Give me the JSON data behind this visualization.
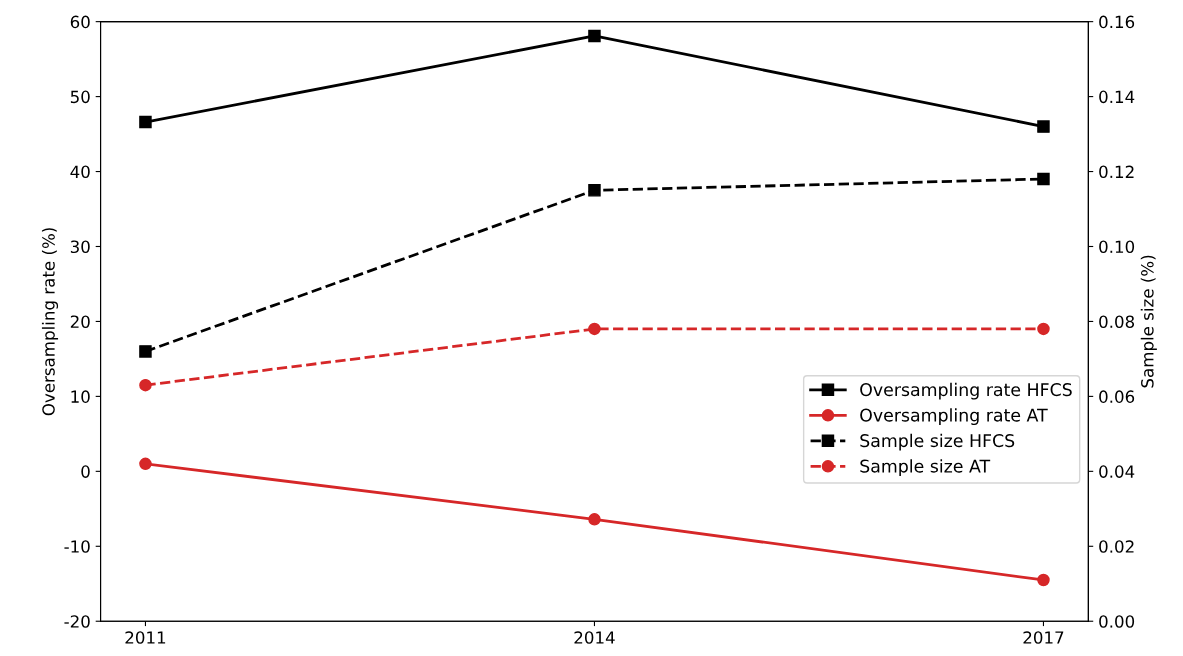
{
  "chart_data": {
    "type": "line",
    "x": [
      2011,
      2014,
      2017
    ],
    "xlim": [
      2010.7,
      2017.3
    ],
    "xticks": [
      2011,
      2014,
      2017
    ],
    "ylabel": "Oversampling rate (%)",
    "y2label": "Sample size (%)",
    "ylim": [
      -20,
      60
    ],
    "yticks": [
      -20,
      -10,
      0,
      10,
      20,
      30,
      40,
      50,
      60
    ],
    "y2lim": [
      0,
      0.16
    ],
    "y2ticks": [
      {
        "value": 0,
        "label": "0.00"
      },
      {
        "value": 0.02,
        "label": "0.02"
      },
      {
        "value": 0.04,
        "label": "0.04"
      },
      {
        "value": 0.06,
        "label": "0.06"
      },
      {
        "value": 0.08,
        "label": "0.08"
      },
      {
        "value": 0.1,
        "label": "0.10"
      },
      {
        "value": 0.12,
        "label": "0.12"
      },
      {
        "value": 0.14,
        "label": "0.14"
      },
      {
        "value": 0.16,
        "label": "0.16"
      }
    ],
    "legend": "center right",
    "grid": false,
    "series": [
      {
        "name": "Oversampling rate HFCS",
        "color": "#000000",
        "values": [
          46.6,
          58.1,
          46.0
        ],
        "marker": "square",
        "line_style": "solid"
      },
      {
        "name": "Oversampling rate AT",
        "color": "#d62728",
        "values": [
          1.0,
          -6.4,
          -14.5
        ],
        "marker": "circle",
        "line_style": "solid"
      },
      {
        "name": "Sample size HFCS",
        "color": "#000000",
        "values": [
          0.072,
          0.115,
          0.118
        ],
        "marker": "square",
        "line_style": "dashed",
        "axis": "y2"
      },
      {
        "name": "Sample size AT",
        "color": "#d62728",
        "values": [
          0.063,
          0.078,
          0.078
        ],
        "marker": "circle",
        "line_style": "dashed",
        "axis": "y2"
      }
    ]
  }
}
